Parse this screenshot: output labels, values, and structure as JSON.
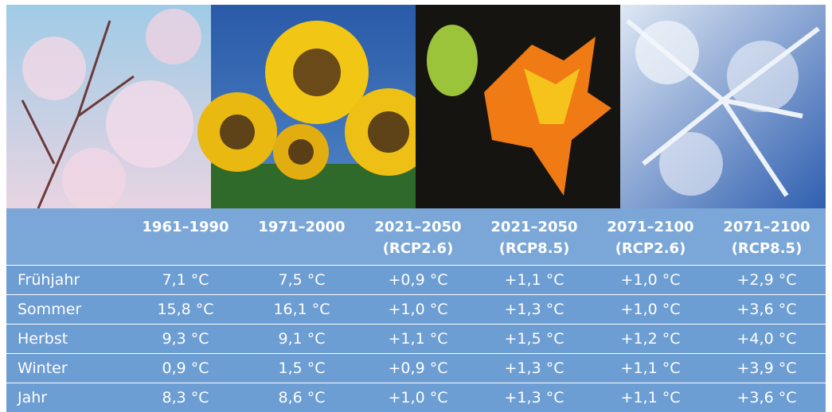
{
  "table": {
    "columns": [
      [
        "1961–1990"
      ],
      [
        "1971–2000"
      ],
      [
        "2021–2050",
        "(RCP2.6)"
      ],
      [
        "2021–2050",
        "(RCP8.5)"
      ],
      [
        "2071–2100",
        "(RCP2.6)"
      ],
      [
        "2071–2100",
        "(RCP8.5)"
      ]
    ],
    "rows": [
      {
        "label": "Frühjahr",
        "values": [
          "7,1 °C",
          "7,5 °C",
          "+0,9 °C",
          "+1,1 °C",
          "+1,0 °C",
          "+2,9 °C"
        ]
      },
      {
        "label": "Sommer",
        "values": [
          "15,8 °C",
          "16,1 °C",
          "+1,0 °C",
          "+1,3 °C",
          "+1,0 °C",
          "+3,6 °C"
        ]
      },
      {
        "label": "Herbst",
        "values": [
          "9,3 °C",
          "9,1 °C",
          "+1,1 °C",
          "+1,5 °C",
          "+1,2 °C",
          "+4,0 °C"
        ]
      },
      {
        "label": "Winter",
        "values": [
          "0,9 °C",
          "1,5 °C",
          "+0,9 °C",
          "+1,3 °C",
          "+1,1 °C",
          "+3,9 °C"
        ]
      },
      {
        "label": "Jahr",
        "values": [
          "8,3 °C",
          "8,6 °C",
          "+1,0 °C",
          "+1,3 °C",
          "+1,1 °C",
          "+3,6 °C"
        ]
      }
    ]
  }
}
